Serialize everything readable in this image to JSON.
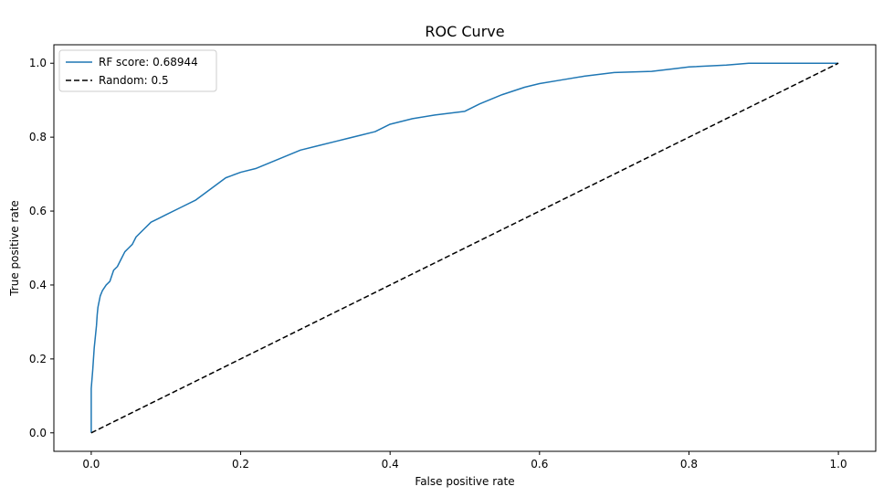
{
  "chart_data": {
    "type": "line",
    "title": "ROC Curve",
    "xlabel": "False positive rate",
    "ylabel": "True positive rate",
    "xlim": [
      -0.05,
      1.05
    ],
    "ylim": [
      -0.05,
      1.05
    ],
    "x_ticks": [
      "0.0",
      "0.2",
      "0.4",
      "0.6",
      "0.8",
      "1.0"
    ],
    "y_ticks": [
      "0.0",
      "0.2",
      "0.4",
      "0.6",
      "0.8",
      "1.0"
    ],
    "grid": false,
    "legend_position": "top-left",
    "series": [
      {
        "name": "RF score: 0.68944",
        "color": "#1f77b4",
        "style": "solid",
        "x": [
          0.0,
          0.0,
          0.002,
          0.003,
          0.004,
          0.005,
          0.006,
          0.007,
          0.008,
          0.009,
          0.01,
          0.012,
          0.015,
          0.02,
          0.025,
          0.03,
          0.035,
          0.04,
          0.045,
          0.05,
          0.055,
          0.06,
          0.07,
          0.08,
          0.09,
          0.1,
          0.12,
          0.14,
          0.16,
          0.18,
          0.2,
          0.22,
          0.25,
          0.28,
          0.3,
          0.33,
          0.36,
          0.38,
          0.4,
          0.43,
          0.46,
          0.5,
          0.52,
          0.55,
          0.58,
          0.6,
          0.63,
          0.66,
          0.7,
          0.75,
          0.78,
          0.8,
          0.85,
          0.88,
          0.9,
          1.0
        ],
        "y": [
          0.0,
          0.12,
          0.17,
          0.2,
          0.23,
          0.25,
          0.27,
          0.29,
          0.32,
          0.34,
          0.35,
          0.37,
          0.385,
          0.4,
          0.41,
          0.44,
          0.45,
          0.47,
          0.49,
          0.5,
          0.51,
          0.53,
          0.55,
          0.57,
          0.58,
          0.59,
          0.61,
          0.63,
          0.66,
          0.69,
          0.705,
          0.715,
          0.74,
          0.765,
          0.775,
          0.79,
          0.805,
          0.815,
          0.835,
          0.85,
          0.86,
          0.87,
          0.89,
          0.915,
          0.935,
          0.945,
          0.955,
          0.965,
          0.975,
          0.978,
          0.985,
          0.99,
          0.995,
          1.0,
          1.0,
          1.0
        ]
      },
      {
        "name": "Random: 0.5",
        "color": "#000000",
        "style": "dashed",
        "x": [
          0.0,
          1.0
        ],
        "y": [
          0.0,
          1.0
        ]
      }
    ]
  }
}
